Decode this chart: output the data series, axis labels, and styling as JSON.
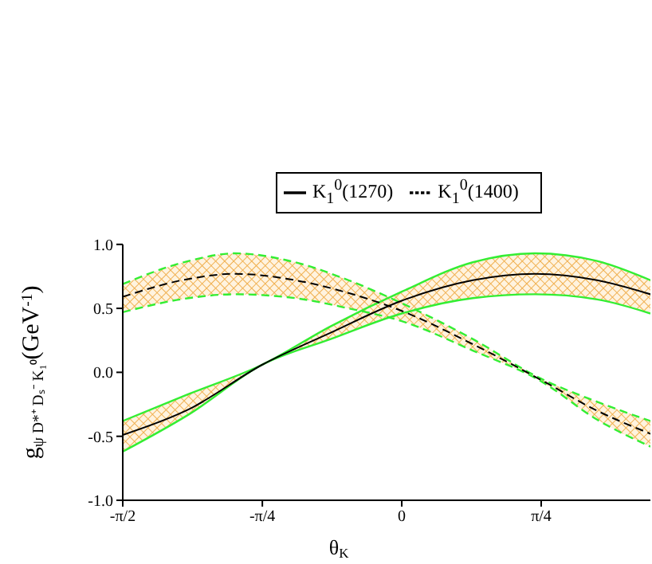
{
  "chart_data": {
    "type": "line",
    "xlabel": "θ$_{K}$",
    "ylabel": "g$_{ψ D*⁺ Dₛ⁻ K₁⁰}$(GeV$^{-1}$)",
    "xlim": [
      -1.571,
      1.4
    ],
    "xticks": [
      {
        "value": -1.571,
        "label": "-π/2"
      },
      {
        "value": -0.785,
        "label": "-π/4"
      },
      0,
      {
        "value": 0.785,
        "label": "π/4"
      }
    ],
    "ylim": [
      -1.0,
      1.0
    ],
    "yticks": [
      {
        "value": -1.0,
        "label": "-1.0"
      },
      {
        "value": -0.5,
        "label": "-0.5"
      },
      {
        "value": 0.0,
        "label": "0.0"
      },
      {
        "value": 0.5,
        "label": "0.5"
      },
      {
        "value": 1.0,
        "label": "1.0"
      }
    ],
    "grid": false,
    "legend": "top right",
    "marker": "none",
    "series": [
      {
        "name": "K$_{1}$$^{0}$(1270)",
        "color": "#000000",
        "line_style": "solid",
        "x": [
          -1.571,
          -1.2,
          -0.785,
          -0.4,
          0,
          0.4,
          0.75,
          1.1,
          1.4
        ],
        "values": [
          -0.49,
          -0.29,
          0.06,
          0.31,
          0.56,
          0.72,
          0.77,
          0.72,
          0.61
        ],
        "lower": [
          -0.62,
          -0.33,
          0.06,
          0.26,
          0.46,
          0.58,
          0.61,
          0.57,
          0.46
        ],
        "upper": [
          -0.38,
          -0.17,
          0.06,
          0.36,
          0.63,
          0.86,
          0.93,
          0.87,
          0.72
        ]
      },
      {
        "name": "K$_{1}$$^{0}$(1400)",
        "color": "#000000",
        "line_style": "dashed",
        "x": [
          -1.571,
          -1.2,
          -0.94,
          -0.6,
          -0.3,
          0,
          0.4,
          0.785,
          1.1,
          1.4
        ],
        "values": [
          0.59,
          0.73,
          0.77,
          0.72,
          0.62,
          0.48,
          0.22,
          -0.06,
          -0.3,
          -0.48
        ],
        "lower": [
          0.47,
          0.58,
          0.61,
          0.58,
          0.5,
          0.4,
          0.17,
          -0.07,
          -0.37,
          -0.58
        ],
        "upper": [
          0.69,
          0.87,
          0.93,
          0.86,
          0.72,
          0.54,
          0.26,
          -0.05,
          -0.23,
          -0.38
        ]
      },
      {
        "color": "#33ee33",
        "line_style": "solid",
        "x": [
          -1.571,
          -1.2,
          -0.785,
          -0.4,
          0,
          0.4,
          0.75,
          1.1,
          1.4
        ],
        "values": [
          -0.62,
          -0.33,
          0.06,
          0.26,
          0.46,
          0.58,
          0.61,
          0.57,
          0.46
        ]
      },
      {
        "color": "#33ee33",
        "line_style": "solid",
        "x": [
          -1.571,
          -1.2,
          -0.785,
          -0.4,
          0,
          0.4,
          0.75,
          1.1,
          1.4
        ],
        "values": [
          -0.38,
          -0.17,
          0.06,
          0.36,
          0.63,
          0.86,
          0.93,
          0.87,
          0.72
        ]
      },
      {
        "color": "#33ee33",
        "line_style": "dashed",
        "x": [
          -1.571,
          -1.2,
          -0.94,
          -0.6,
          -0.3,
          0,
          0.4,
          0.785,
          1.1,
          1.4
        ],
        "values": [
          0.47,
          0.58,
          0.61,
          0.58,
          0.5,
          0.4,
          0.17,
          -0.07,
          -0.37,
          -0.58
        ]
      },
      {
        "color": "#33ee33",
        "line_style": "dashed",
        "x": [
          -1.571,
          -1.2,
          -0.94,
          -0.6,
          -0.3,
          0,
          0.4,
          0.785,
          1.1,
          1.4
        ],
        "values": [
          0.69,
          0.87,
          0.93,
          0.86,
          0.72,
          0.54,
          0.26,
          -0.05,
          -0.23,
          -0.38
        ]
      }
    ]
  }
}
